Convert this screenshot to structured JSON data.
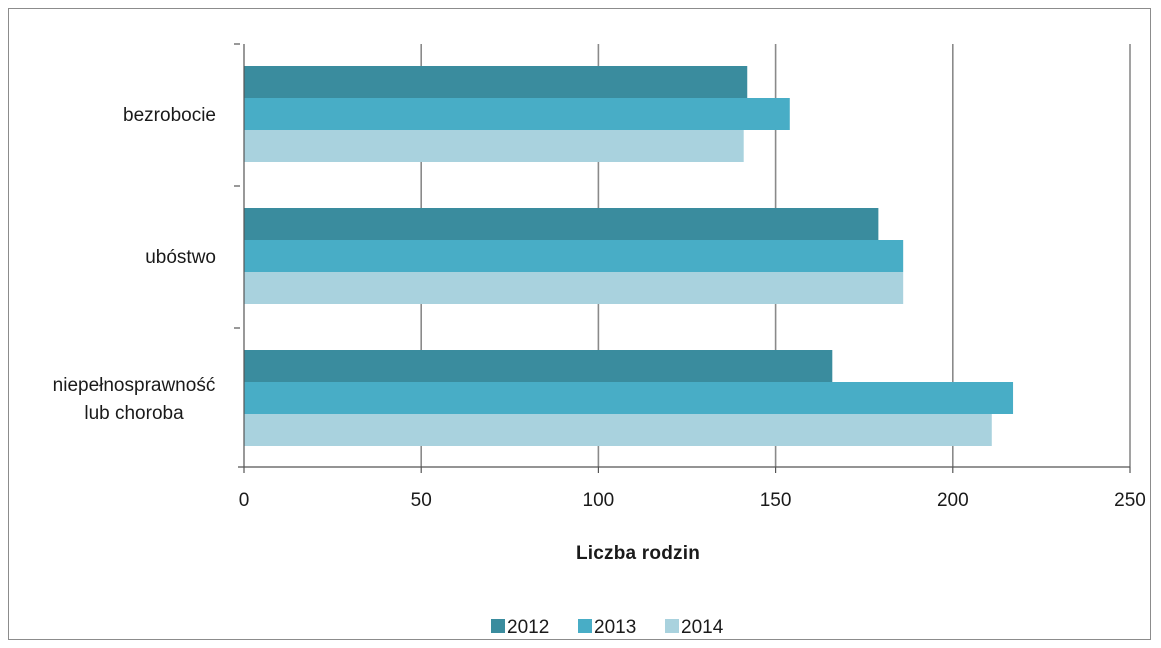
{
  "chart_data": {
    "type": "bar",
    "orientation": "horizontal",
    "categories": [
      "bezrobocie",
      "ubóstwo",
      "niepełnosprawność lub choroba"
    ],
    "category_lines": [
      [
        "bezrobocie"
      ],
      [
        "ubóstwo"
      ],
      [
        "niepełnosprawność",
        "lub choroba"
      ]
    ],
    "series": [
      {
        "name": "2012",
        "values": [
          142,
          179,
          166
        ]
      },
      {
        "name": "2013",
        "values": [
          154,
          186,
          217
        ]
      },
      {
        "name": "2014",
        "values": [
          141,
          186,
          211
        ]
      }
    ],
    "colors": [
      "#3a8c9e",
      "#48adc6",
      "#a9d2de"
    ],
    "xlim": [
      0,
      250
    ],
    "xticks": [
      0,
      50,
      100,
      150,
      200,
      250
    ],
    "xlabel": "Liczba rodzin",
    "ylabel": "",
    "title": "",
    "grid": "vertical",
    "legend_position": "bottom"
  }
}
